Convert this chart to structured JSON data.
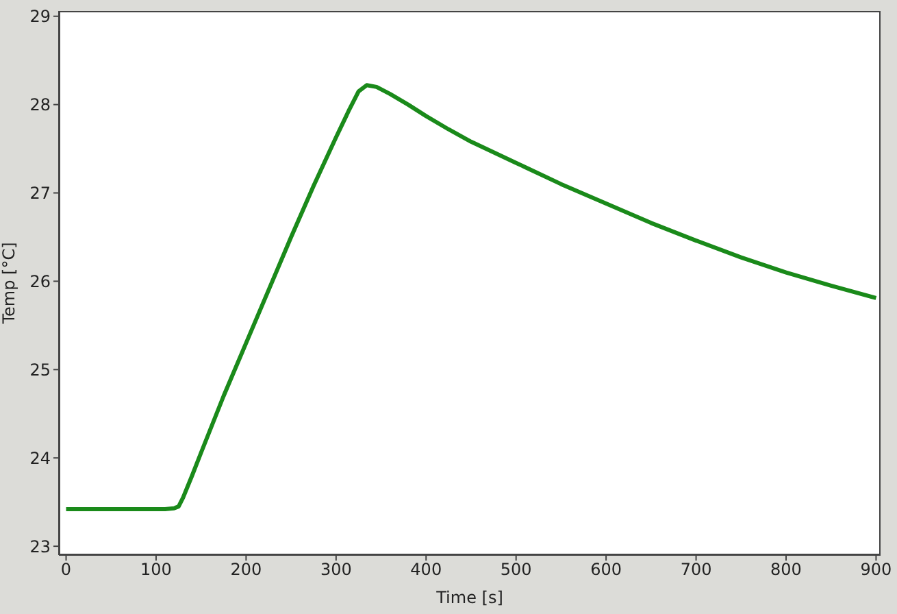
{
  "chart_data": {
    "type": "line",
    "xlabel": "Time [s]",
    "ylabel": "Temp [°C]",
    "xlim": [
      -8,
      905
    ],
    "xticks": [
      0,
      100,
      200,
      300,
      400,
      500,
      600,
      700,
      800,
      900
    ],
    "ylim": [
      22.9,
      29.06
    ],
    "yticks": [
      23,
      24,
      25,
      26,
      27,
      28,
      29
    ],
    "marker": "none",
    "line_style": "solid",
    "series": [
      {
        "color": "#1a8a1a",
        "x": [
          0,
          40,
          80,
          110,
          120,
          125,
          130,
          140,
          150,
          175,
          200,
          225,
          250,
          275,
          300,
          315,
          325,
          334,
          345,
          360,
          380,
          400,
          425,
          450,
          500,
          550,
          600,
          650,
          700,
          750,
          800,
          850,
          900
        ],
        "values": [
          23.42,
          23.42,
          23.42,
          23.42,
          23.43,
          23.45,
          23.55,
          23.8,
          24.06,
          24.7,
          25.3,
          25.9,
          26.5,
          27.08,
          27.63,
          27.95,
          28.15,
          28.22,
          28.2,
          28.12,
          28.0,
          27.87,
          27.72,
          27.58,
          27.34,
          27.1,
          26.88,
          26.66,
          26.46,
          26.27,
          26.1,
          25.95,
          25.81
        ]
      }
    ]
  }
}
